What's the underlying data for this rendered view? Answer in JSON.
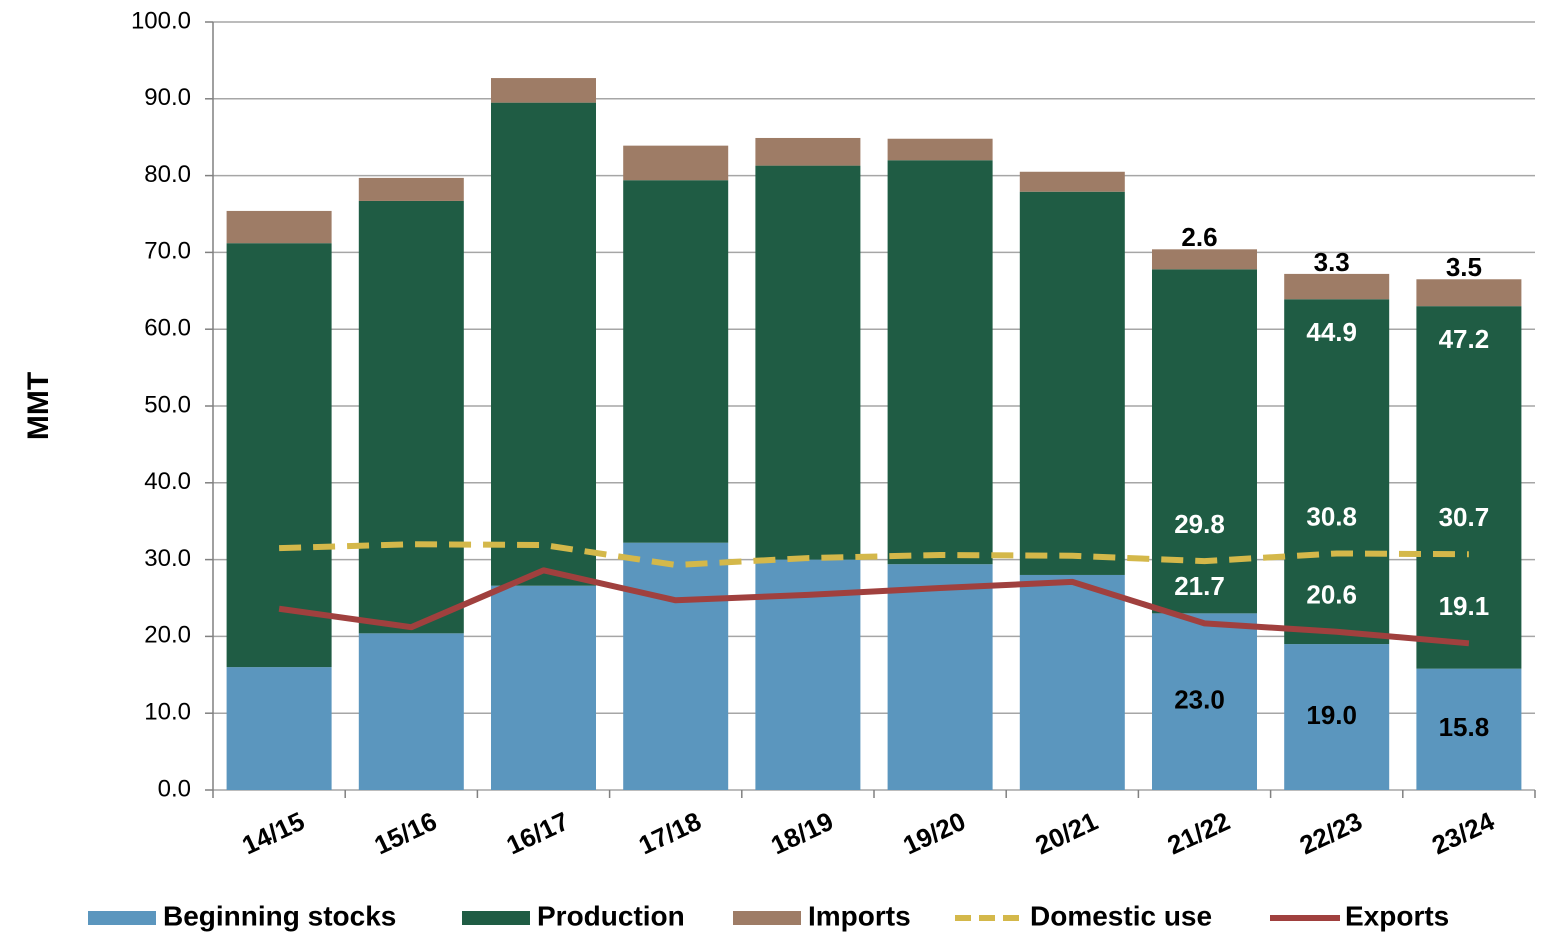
{
  "chart_data": {
    "type": "stacked_bar_line",
    "y_label": "MMT",
    "categories": [
      "14/15",
      "15/16",
      "16/17",
      "17/18",
      "18/19",
      "19/20",
      "20/21",
      "21/22",
      "22/23",
      "23/24"
    ],
    "series": [
      {
        "name": "Beginning stocks",
        "kind": "bar",
        "color": "#5b96be",
        "values": [
          16.0,
          20.4,
          26.6,
          32.2,
          30.0,
          29.4,
          28.0,
          23.0,
          19.0,
          15.8
        ],
        "value_labels": [
          null,
          null,
          null,
          null,
          null,
          null,
          null,
          "23.0",
          "19.0",
          "15.8"
        ]
      },
      {
        "name": "Production",
        "kind": "bar",
        "color": "#1f5c44",
        "values": [
          55.2,
          56.3,
          62.9,
          47.2,
          51.3,
          52.6,
          49.9,
          44.8,
          44.9,
          47.2
        ],
        "value_labels": [
          null,
          null,
          null,
          null,
          null,
          null,
          null,
          null,
          "44.9",
          "47.2"
        ]
      },
      {
        "name": "Imports",
        "kind": "bar",
        "color": "#9e7c66",
        "values": [
          4.2,
          3.0,
          3.2,
          4.5,
          3.6,
          2.8,
          2.6,
          2.6,
          3.3,
          3.5
        ],
        "value_labels": [
          null,
          null,
          null,
          null,
          null,
          null,
          null,
          "2.6",
          "3.3",
          "3.5"
        ]
      },
      {
        "name": "Domestic use",
        "kind": "line",
        "dashed": true,
        "color": "#d4b84a",
        "values": [
          31.5,
          32.0,
          31.9,
          29.3,
          30.2,
          30.6,
          30.5,
          29.8,
          30.8,
          30.7
        ],
        "value_labels": [
          null,
          null,
          null,
          null,
          null,
          null,
          null,
          "29.8",
          "30.8",
          "30.7"
        ]
      },
      {
        "name": "Exports",
        "kind": "line",
        "dashed": false,
        "color": "#a0403e",
        "values": [
          23.6,
          21.2,
          28.6,
          24.7,
          25.4,
          26.3,
          27.1,
          21.7,
          20.6,
          19.1
        ],
        "value_labels": [
          null,
          null,
          null,
          null,
          null,
          null,
          null,
          "21.7",
          "20.6",
          "19.1"
        ]
      }
    ],
    "ylim": [
      0,
      100
    ],
    "yticks": [
      {
        "value": 0,
        "label": "0.0"
      },
      {
        "value": 10,
        "label": "10.0"
      },
      {
        "value": 20,
        "label": "20.0"
      },
      {
        "value": 30,
        "label": "30.0"
      },
      {
        "value": 40,
        "label": "40.0"
      },
      {
        "value": 50,
        "label": "50.0"
      },
      {
        "value": 60,
        "label": "60.0"
      },
      {
        "value": 70,
        "label": "70.0"
      },
      {
        "value": 80,
        "label": "80.0"
      },
      {
        "value": 90,
        "label": "90.0"
      },
      {
        "value": 100,
        "label": "100.0"
      }
    ],
    "grid": true,
    "legend": "bottom"
  }
}
